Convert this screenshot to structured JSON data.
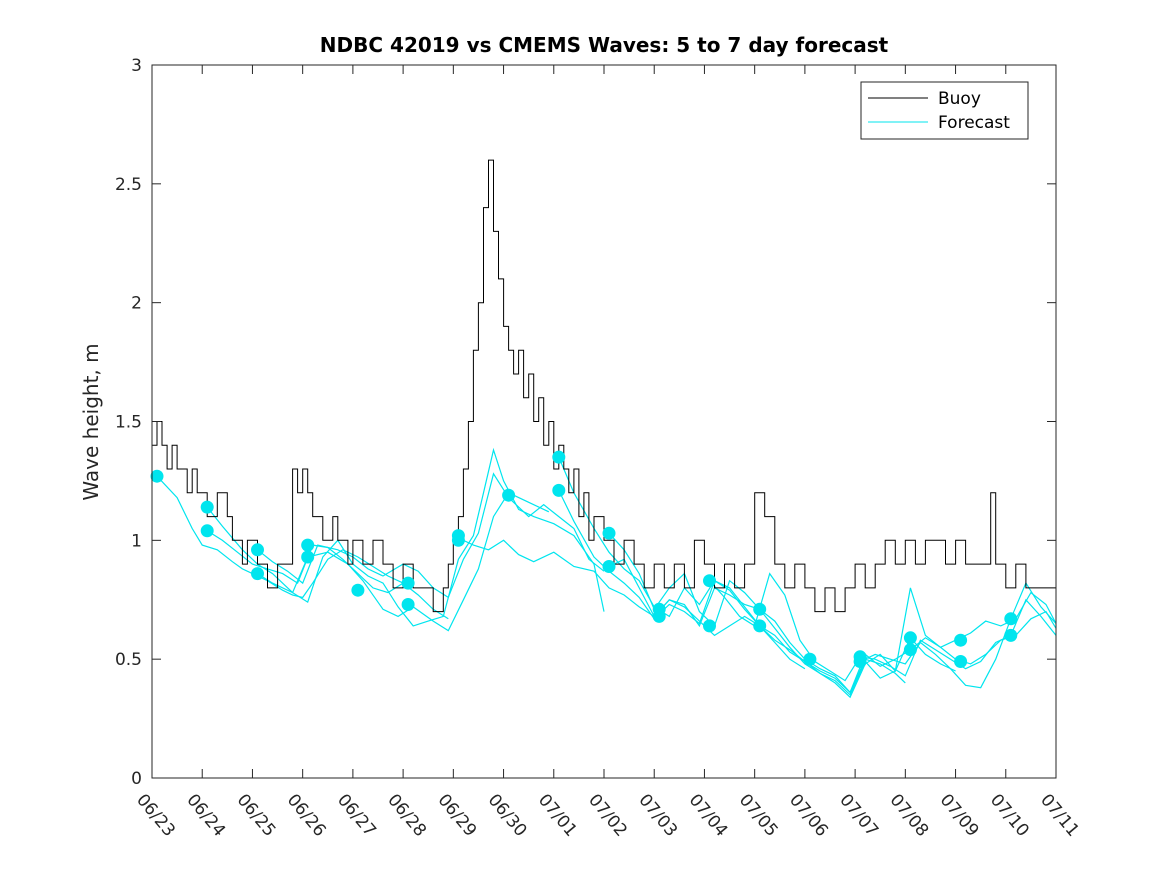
{
  "chart_data": {
    "type": "line",
    "title": "NDBC 42019 vs CMEMS Waves: 5 to 7 day forecast",
    "xlabel": "",
    "ylabel": "Wave height, m",
    "ylim": [
      0,
      3
    ],
    "yticks": [
      0,
      0.5,
      1,
      1.5,
      2,
      2.5,
      3
    ],
    "ytick_labels": [
      "0",
      "0.5",
      "1",
      "1.5",
      "2",
      "2.5",
      "3"
    ],
    "xlim": [
      0,
      18
    ],
    "xticks": [
      0,
      1,
      2,
      3,
      4,
      5,
      6,
      7,
      8,
      9,
      10,
      11,
      12,
      13,
      14,
      15,
      16,
      17,
      18
    ],
    "xtick_labels": [
      "06/23",
      "06/24",
      "06/25",
      "06/26",
      "06/27",
      "06/28",
      "06/29",
      "06/30",
      "07/01",
      "07/02",
      "07/03",
      "07/04",
      "07/05",
      "07/06",
      "07/07",
      "07/08",
      "07/09",
      "07/10",
      "07/11"
    ],
    "legend": {
      "placement": "top-right",
      "entries": [
        "Buoy",
        "Forecast"
      ]
    },
    "colors": {
      "buoy": "#000000",
      "forecast": "#00e5ee",
      "axis": "#262626"
    },
    "series": [
      {
        "name": "Buoy",
        "style": "step",
        "x": [
          0.0,
          0.1,
          0.2,
          0.3,
          0.4,
          0.5,
          0.6,
          0.7,
          0.8,
          0.9,
          1.0,
          1.1,
          1.3,
          1.5,
          1.6,
          1.8,
          1.9,
          2.1,
          2.3,
          2.5,
          2.6,
          2.8,
          2.9,
          3.0,
          3.1,
          3.2,
          3.4,
          3.6,
          3.7,
          3.9,
          4.0,
          4.2,
          4.4,
          4.6,
          4.8,
          5.0,
          5.2,
          5.4,
          5.6,
          5.8,
          5.9,
          6.0,
          6.1,
          6.2,
          6.3,
          6.4,
          6.5,
          6.6,
          6.7,
          6.8,
          6.9,
          7.0,
          7.1,
          7.2,
          7.3,
          7.4,
          7.5,
          7.6,
          7.7,
          7.8,
          7.9,
          8.0,
          8.1,
          8.2,
          8.3,
          8.4,
          8.5,
          8.6,
          8.7,
          8.8,
          9.0,
          9.2,
          9.4,
          9.6,
          9.8,
          10.0,
          10.2,
          10.4,
          10.6,
          10.8,
          11.0,
          11.2,
          11.4,
          11.6,
          11.8,
          12.0,
          12.2,
          12.4,
          12.6,
          12.8,
          13.0,
          13.2,
          13.4,
          13.6,
          13.8,
          14.0,
          14.2,
          14.4,
          14.6,
          14.8,
          15.0,
          15.2,
          15.4,
          15.6,
          15.8,
          16.0,
          16.2,
          16.4,
          16.6,
          16.7,
          16.8,
          17.0,
          17.2,
          17.4,
          17.6,
          17.8,
          18.0
        ],
        "y": [
          1.4,
          1.5,
          1.4,
          1.3,
          1.4,
          1.3,
          1.3,
          1.2,
          1.3,
          1.2,
          1.2,
          1.1,
          1.2,
          1.1,
          1.0,
          0.9,
          1.0,
          0.9,
          0.8,
          0.9,
          0.9,
          1.3,
          1.2,
          1.3,
          1.2,
          1.1,
          1.0,
          1.1,
          1.0,
          0.9,
          1.0,
          0.9,
          1.0,
          0.9,
          0.8,
          0.9,
          0.8,
          0.8,
          0.7,
          0.8,
          0.9,
          1.0,
          1.1,
          1.3,
          1.5,
          1.8,
          2.0,
          2.4,
          2.6,
          2.3,
          2.1,
          1.9,
          1.8,
          1.7,
          1.8,
          1.6,
          1.7,
          1.5,
          1.6,
          1.4,
          1.5,
          1.3,
          1.4,
          1.3,
          1.2,
          1.3,
          1.1,
          1.2,
          1.0,
          1.1,
          1.0,
          0.9,
          1.0,
          0.9,
          0.8,
          0.9,
          0.8,
          0.9,
          0.8,
          1.0,
          0.9,
          0.8,
          0.9,
          0.8,
          0.9,
          1.2,
          1.1,
          0.9,
          0.8,
          0.9,
          0.8,
          0.7,
          0.8,
          0.7,
          0.8,
          0.9,
          0.8,
          0.9,
          1.0,
          0.9,
          1.0,
          0.9,
          1.0,
          1.0,
          0.9,
          1.0,
          0.9,
          0.9,
          0.9,
          1.2,
          0.9,
          0.8,
          0.9,
          0.8,
          0.8,
          0.8,
          0.8
        ]
      },
      {
        "name": "Forecast",
        "segments": [
          {
            "x": [
              0.1,
              0.5,
              0.8,
              1.0,
              1.3,
              1.6,
              1.8,
              2.0,
              2.3,
              2.6,
              2.8,
              3.0,
              3.2,
              3.5,
              3.8,
              4.1,
              4.4,
              4.7,
              5.0
            ],
            "y": [
              1.27,
              1.18,
              1.05,
              0.98,
              0.96,
              0.91,
              0.88,
              0.86,
              0.83,
              0.79,
              0.77,
              0.76,
              0.82,
              0.92,
              0.96,
              0.93,
              0.89,
              0.85,
              0.82
            ]
          },
          {
            "x": [
              1.1,
              1.4,
              1.7,
              2.0,
              2.3,
              2.6,
              2.9,
              3.2,
              3.5,
              3.8,
              4.1,
              4.4,
              4.7,
              5.0,
              5.3,
              5.6,
              5.9
            ],
            "y": [
              1.04,
              1.0,
              0.95,
              0.9,
              0.88,
              0.86,
              0.82,
              0.98,
              0.97,
              0.92,
              0.86,
              0.8,
              0.78,
              0.82,
              0.77,
              0.71,
              0.67
            ]
          },
          {
            "x": [
              1.1,
              1.4,
              1.8,
              2.1,
              2.4,
              2.8,
              3.1,
              3.5,
              3.9,
              4.2,
              4.6,
              4.9,
              5.2,
              5.6,
              5.9,
              6.2,
              6.5,
              6.8,
              7.1,
              7.5,
              7.9
            ],
            "y": [
              1.14,
              1.06,
              0.96,
              0.9,
              0.86,
              0.78,
              0.93,
              0.95,
              0.9,
              0.83,
              0.71,
              0.68,
              0.72,
              0.66,
              0.62,
              0.75,
              0.88,
              1.1,
              1.2,
              1.16,
              1.12
            ]
          },
          {
            "x": [
              2.1,
              2.4,
              2.7,
              3.0,
              3.3,
              3.7,
              4.0,
              4.3,
              4.6,
              5.0,
              5.3,
              5.6,
              5.9,
              6.2,
              6.5,
              6.8,
              7.1,
              7.5,
              7.8,
              8.1,
              8.4,
              8.7,
              9.0
            ],
            "y": [
              0.96,
              0.91,
              0.87,
              0.82,
              0.98,
              0.96,
              0.93,
              0.88,
              0.85,
              0.9,
              0.87,
              0.8,
              0.76,
              0.92,
              1.03,
              1.28,
              1.18,
              1.1,
              1.15,
              1.1,
              1.05,
              0.92,
              0.87
            ]
          },
          {
            "x": [
              2.1,
              2.4,
              2.8,
              3.1,
              3.4,
              3.7,
              4.0,
              4.3,
              4.6,
              4.9,
              5.2,
              5.5,
              5.8,
              6.1,
              6.4,
              6.6,
              6.8,
              7.0,
              7.3,
              7.6,
              8.0,
              8.4,
              8.8,
              9.0
            ],
            "y": [
              0.86,
              0.82,
              0.78,
              0.74,
              0.93,
              1.0,
              0.9,
              0.85,
              0.82,
              0.72,
              0.64,
              0.66,
              0.68,
              0.92,
              1.02,
              1.2,
              1.38,
              1.25,
              1.13,
              1.1,
              1.07,
              1.02,
              0.9,
              0.7
            ]
          },
          {
            "x": [
              6.1,
              6.4,
              6.7,
              7.0,
              7.3,
              7.6,
              8.0,
              8.4,
              8.8,
              9.1,
              9.4,
              9.7,
              10.0,
              10.3,
              10.6,
              10.9,
              11.2,
              11.5,
              11.8,
              12.1,
              12.4,
              12.7,
              13.0
            ],
            "y": [
              1.01,
              0.98,
              0.96,
              1.0,
              0.94,
              0.91,
              0.95,
              0.89,
              0.87,
              0.8,
              0.77,
              0.72,
              0.68,
              0.75,
              0.72,
              0.66,
              0.6,
              0.64,
              0.68,
              0.64,
              0.57,
              0.5,
              0.46
            ]
          },
          {
            "x": [
              8.1,
              8.4,
              8.8,
              9.1,
              9.4,
              9.7,
              10.0,
              10.3,
              10.6,
              10.9,
              11.2,
              11.5,
              11.8,
              12.1,
              12.4,
              12.7,
              13.0,
              13.3,
              13.6,
              13.9,
              14.2,
              14.5,
              14.8,
              15.0
            ],
            "y": [
              1.35,
              1.2,
              1.05,
              0.95,
              0.88,
              0.83,
              0.72,
              0.68,
              0.8,
              0.73,
              0.83,
              0.79,
              0.71,
              0.64,
              0.6,
              0.53,
              0.49,
              0.45,
              0.42,
              0.36,
              0.5,
              0.48,
              0.44,
              0.4
            ]
          },
          {
            "x": [
              8.1,
              8.4,
              8.8,
              9.1,
              9.4,
              9.7,
              10.0,
              10.3,
              10.6,
              10.9,
              11.2,
              11.5,
              11.8,
              12.1,
              12.4,
              12.7,
              13.0,
              13.3,
              13.6,
              13.9,
              14.2,
              14.5,
              14.8,
              15.1,
              15.4,
              15.7,
              16.0
            ],
            "y": [
              1.21,
              1.08,
              0.93,
              0.87,
              0.82,
              0.76,
              0.67,
              0.73,
              0.7,
              0.65,
              0.83,
              0.8,
              0.72,
              0.64,
              0.58,
              0.54,
              0.49,
              0.44,
              0.4,
              0.34,
              0.48,
              0.52,
              0.45,
              0.59,
              0.52,
              0.48,
              0.45
            ]
          },
          {
            "x": [
              9.1,
              9.4,
              9.7,
              10.0,
              10.3,
              10.6,
              10.9,
              11.2,
              11.5,
              11.8,
              12.1,
              12.4,
              12.7,
              13.0,
              13.3,
              13.6,
              13.9,
              14.2,
              14.5,
              14.8,
              15.1,
              15.4,
              15.7,
              16.0,
              16.3,
              16.6,
              16.9,
              17.2,
              17.5,
              17.8,
              18.0
            ],
            "y": [
              1.03,
              0.96,
              0.86,
              0.71,
              0.8,
              0.86,
              0.7,
              0.64,
              0.83,
              0.78,
              0.71,
              0.66,
              0.57,
              0.5,
              0.46,
              0.43,
              0.36,
              0.52,
              0.47,
              0.5,
              0.54,
              0.59,
              0.55,
              0.5,
              0.48,
              0.52,
              0.58,
              0.6,
              0.67,
              0.7,
              0.63
            ]
          },
          {
            "x": [
              9.1,
              9.4,
              9.7,
              10.0,
              10.3,
              10.6,
              10.9,
              11.2,
              11.5,
              11.8,
              12.1,
              12.4,
              12.7,
              13.0,
              13.3,
              13.6,
              13.9,
              14.2,
              14.5,
              14.8,
              15.1,
              15.4,
              15.7,
              16.0,
              16.3,
              16.6,
              16.9,
              17.2,
              17.5,
              17.8,
              18.0
            ],
            "y": [
              0.89,
              0.92,
              0.8,
              0.68,
              0.75,
              0.73,
              0.64,
              0.8,
              0.77,
              0.73,
              0.71,
              0.63,
              0.55,
              0.48,
              0.44,
              0.41,
              0.35,
              0.49,
              0.42,
              0.45,
              0.8,
              0.6,
              0.55,
              0.58,
              0.61,
              0.66,
              0.64,
              0.67,
              0.78,
              0.73,
              0.65
            ]
          },
          {
            "x": [
              11.1,
              11.4,
              11.7,
              12.0,
              12.3,
              12.6,
              12.9,
              13.2,
              13.5,
              13.8,
              14.1,
              14.4,
              14.7,
              15.0,
              15.3,
              15.6,
              15.9,
              16.2,
              16.5,
              16.8,
              17.1,
              17.4,
              17.7,
              18.0
            ],
            "y": [
              0.83,
              0.76,
              0.68,
              0.64,
              0.86,
              0.77,
              0.58,
              0.49,
              0.45,
              0.41,
              0.51,
              0.5,
              0.47,
              0.43,
              0.58,
              0.54,
              0.5,
              0.46,
              0.49,
              0.57,
              0.6,
              0.75,
              0.68,
              0.6
            ]
          },
          {
            "x": [
              14.1,
              14.4,
              14.7,
              15.0,
              15.3,
              15.6,
              15.9,
              16.2,
              16.5,
              16.8,
              17.1,
              17.4,
              17.7,
              18.0
            ],
            "y": [
              0.49,
              0.52,
              0.5,
              0.48,
              0.57,
              0.52,
              0.46,
              0.39,
              0.38,
              0.5,
              0.67,
              0.82,
              0.72,
              0.65
            ]
          }
        ],
        "markers": {
          "x": [
            0.1,
            1.1,
            1.1,
            2.1,
            2.1,
            3.1,
            3.1,
            4.1,
            5.1,
            5.1,
            6.1,
            6.1,
            7.1,
            8.1,
            8.1,
            9.1,
            9.1,
            10.1,
            10.1,
            11.1,
            11.1,
            12.1,
            12.1,
            13.1,
            14.1,
            14.1,
            15.1,
            15.1,
            16.1,
            16.1,
            17.1,
            17.1
          ],
          "y": [
            1.27,
            1.14,
            1.04,
            0.96,
            0.86,
            0.98,
            0.93,
            0.79,
            0.82,
            0.73,
            1.02,
            1.0,
            1.19,
            1.35,
            1.21,
            1.03,
            0.89,
            0.71,
            0.68,
            0.83,
            0.64,
            0.71,
            0.64,
            0.5,
            0.51,
            0.49,
            0.59,
            0.54,
            0.58,
            0.49,
            0.67,
            0.6
          ]
        }
      }
    ]
  }
}
